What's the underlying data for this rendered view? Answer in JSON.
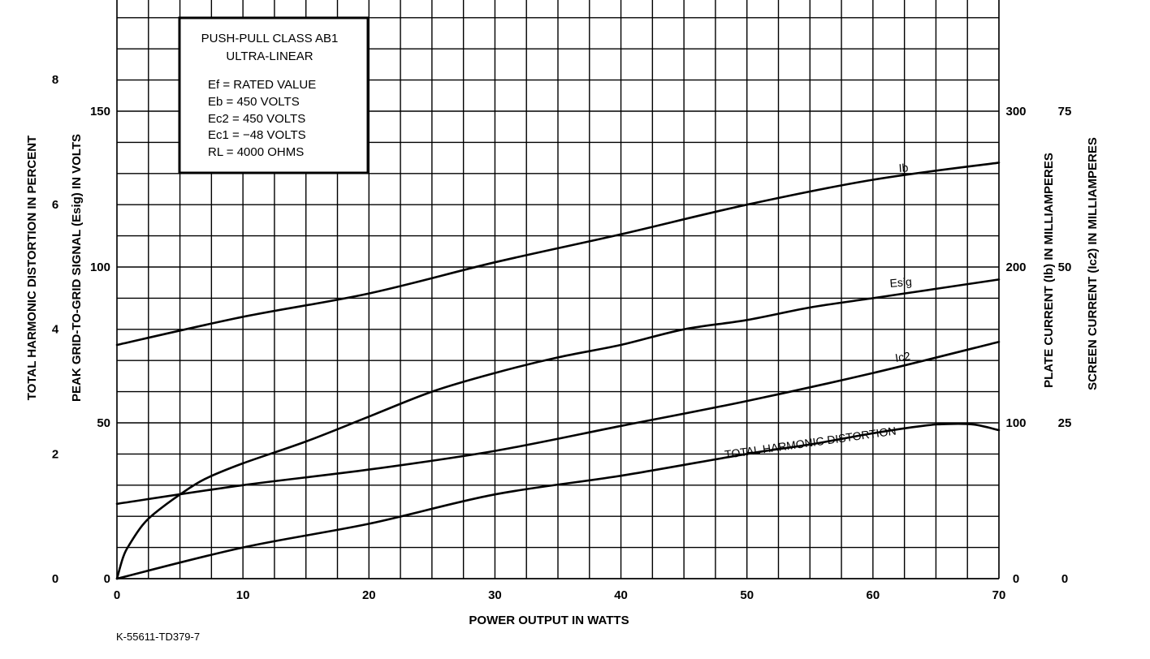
{
  "chart_data": {
    "type": "line",
    "xlabel": "POWER OUTPUT IN WATTS",
    "xlim": [
      0,
      70
    ],
    "x_ticks": [
      "0",
      "10",
      "20",
      "30",
      "40",
      "50",
      "60",
      "70"
    ],
    "axes": {
      "thd": {
        "label": "TOTAL HARMONIC DISTORTION IN PERCENT",
        "ylim": [
          0,
          8
        ],
        "ticks": [
          "0",
          "2",
          "4",
          "6",
          "8"
        ]
      },
      "esig": {
        "label": "PEAK GRID-TO-GRID SIGNAL (Esig) IN VOLTS",
        "ylim": [
          0,
          150
        ],
        "ticks": [
          "0",
          "50",
          "100",
          "150"
        ]
      },
      "ib": {
        "label": "PLATE CURRENT (Ib) IN MILLIAMPERES",
        "ylim": [
          0,
          300
        ],
        "ticks": [
          "0",
          "100",
          "200",
          "300"
        ]
      },
      "ic2": {
        "label": "SCREEN CURRENT (Ic2) IN MILLIAMPERES",
        "ylim": [
          0,
          75
        ],
        "ticks": [
          "0",
          "25",
          "50",
          "75"
        ]
      }
    },
    "series": [
      {
        "name": "Ib",
        "axis": "ib",
        "x": [
          0,
          10,
          20,
          30,
          40,
          50,
          60,
          70
        ],
        "y": [
          150,
          168,
          183,
          203,
          221,
          240,
          256,
          267
        ]
      },
      {
        "name": "Esig",
        "axis": "esig",
        "x": [
          0,
          0.5,
          1,
          2,
          3,
          5,
          7,
          10,
          15,
          20,
          25,
          30,
          35,
          40,
          45,
          50,
          55,
          60,
          65,
          70
        ],
        "y": [
          0,
          7,
          11,
          17,
          21,
          27,
          32,
          37,
          44,
          52,
          60,
          66,
          71,
          75,
          80,
          83,
          87,
          90,
          93,
          96
        ]
      },
      {
        "name": "Ic2",
        "axis": "ic2",
        "x": [
          0,
          10,
          20,
          30,
          40,
          50,
          60,
          70
        ],
        "y": [
          12,
          15,
          17.5,
          20.5,
          24.5,
          28.5,
          33,
          38
        ]
      },
      {
        "name": "TOTAL HARMONIC DISTORTION",
        "axis": "thd",
        "x": [
          0,
          10,
          20,
          30,
          40,
          50,
          55,
          60,
          64,
          66,
          68,
          70
        ],
        "y": [
          0,
          0.5,
          0.88,
          1.35,
          1.65,
          2.0,
          2.15,
          2.33,
          2.45,
          2.48,
          2.47,
          2.38
        ]
      }
    ],
    "curve_labels": {
      "ib": "Ib",
      "esig": "Esig",
      "ic2": "Ic2",
      "thd": "TOTAL HARMONIC DISTORTION"
    },
    "info_box": {
      "title_line1": "PUSH-PULL CLASS AB1",
      "title_line2": "ULTRA-LINEAR",
      "ef": "Ef = RATED VALUE",
      "eb": "Eb = 450 VOLTS",
      "ec2": "Ec2 = 450 VOLTS",
      "ec1": "Ec1 = −48 VOLTS",
      "rl": "RL = 4000 OHMS"
    },
    "footer_code": "K-55611-TD379-7"
  }
}
